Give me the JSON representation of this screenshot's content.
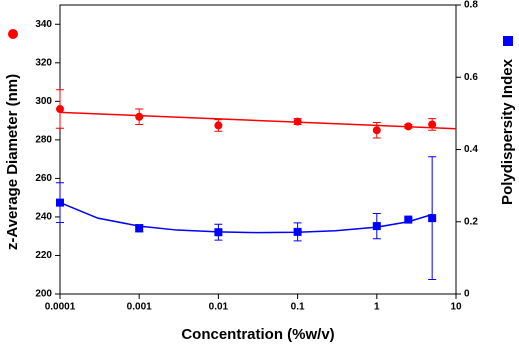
{
  "chart_data": {
    "type": "scatter",
    "x_label": "Concentration (%w/v)",
    "y_label": "z-Average Diameter (nm)",
    "y2_label": "Polydispersity Index",
    "xscale": "log",
    "xlim": [
      0.0001,
      10
    ],
    "xticks": [
      0.0001,
      0.001,
      0.01,
      0.1,
      1,
      10
    ],
    "ylim": [
      200,
      350
    ],
    "yticks": [
      200,
      220,
      240,
      260,
      280,
      300,
      320,
      340
    ],
    "y2lim": [
      0,
      0.8
    ],
    "y2ticks": [
      0.0,
      0.2,
      0.4,
      0.6,
      0.8
    ],
    "series": [
      {
        "name": "z-Average Diameter",
        "color": "#ff0000",
        "marker": "circle",
        "x": [
          0.0001,
          0.001,
          0.01,
          0.1,
          1,
          2.5,
          5
        ],
        "values": [
          296,
          292,
          287.5,
          289.5,
          285,
          287,
          288
        ],
        "errors": [
          10,
          4,
          3,
          1.5,
          4,
          1,
          3
        ],
        "fit": {
          "x": [
            0.0001,
            10
          ],
          "values": [
            294.3,
            285.8
          ]
        }
      },
      {
        "name": "Polydispersity Index",
        "color": "#0000ff",
        "marker": "square",
        "axis": "y2",
        "x": [
          0.0001,
          0.001,
          0.01,
          0.1,
          1,
          2.5,
          5
        ],
        "values": [
          0.253,
          0.182,
          0.171,
          0.172,
          0.188,
          0.206,
          0.21
        ],
        "errors": [
          0.055,
          0.01,
          0.022,
          0.025,
          0.035,
          0.005,
          0.17
        ],
        "fit": {
          "x": [
            0.0001,
            0.0003,
            0.001,
            0.003,
            0.01,
            0.03,
            0.1,
            0.3,
            1,
            2.5,
            5
          ],
          "values": [
            0.253,
            0.21,
            0.188,
            0.177,
            0.172,
            0.17,
            0.171,
            0.175,
            0.185,
            0.2,
            0.22
          ]
        }
      }
    ]
  }
}
